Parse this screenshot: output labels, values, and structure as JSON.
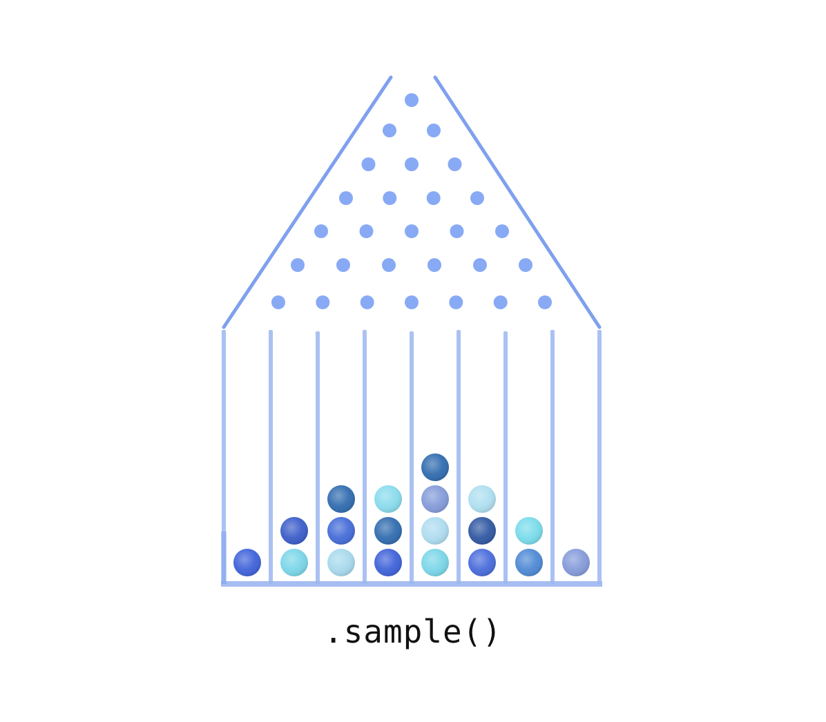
{
  "caption": ".sample()",
  "colors": {
    "peg": "#88aaf5",
    "frame": "#7fa0ee",
    "bin_wall": "#9bb6f0",
    "ball_shades": [
      "#2f55d6",
      "#6fd3e6",
      "#1f5fa8",
      "#8fdcea",
      "#3b5fd8",
      "#2a6fc9",
      "#a7d9ef",
      "#5a78d0",
      "#7a92d6"
    ]
  },
  "peg_rows": [
    1,
    2,
    3,
    4,
    5,
    6,
    7
  ],
  "bins": [
    {
      "balls": [
        "#2f55d6"
      ]
    },
    {
      "balls": [
        "#6fd3e6",
        "#2a4fc4"
      ]
    },
    {
      "balls": [
        "#9fd6ea",
        "#3560d4",
        "#1f5fa8"
      ]
    },
    {
      "balls": [
        "#2f55d6",
        "#1f5fa8",
        "#7fd8ea"
      ]
    },
    {
      "balls": [
        "#6fd3e6",
        "#a7d9ef",
        "#7a92d6",
        "#1f5fa8"
      ]
    },
    {
      "balls": [
        "#3b5fd8",
        "#1f4a9a",
        "#a7dcef"
      ]
    },
    {
      "balls": [
        "#3f7fd0",
        "#6fd8e8"
      ]
    },
    {
      "balls": [
        "#7a92d6"
      ]
    }
  ]
}
